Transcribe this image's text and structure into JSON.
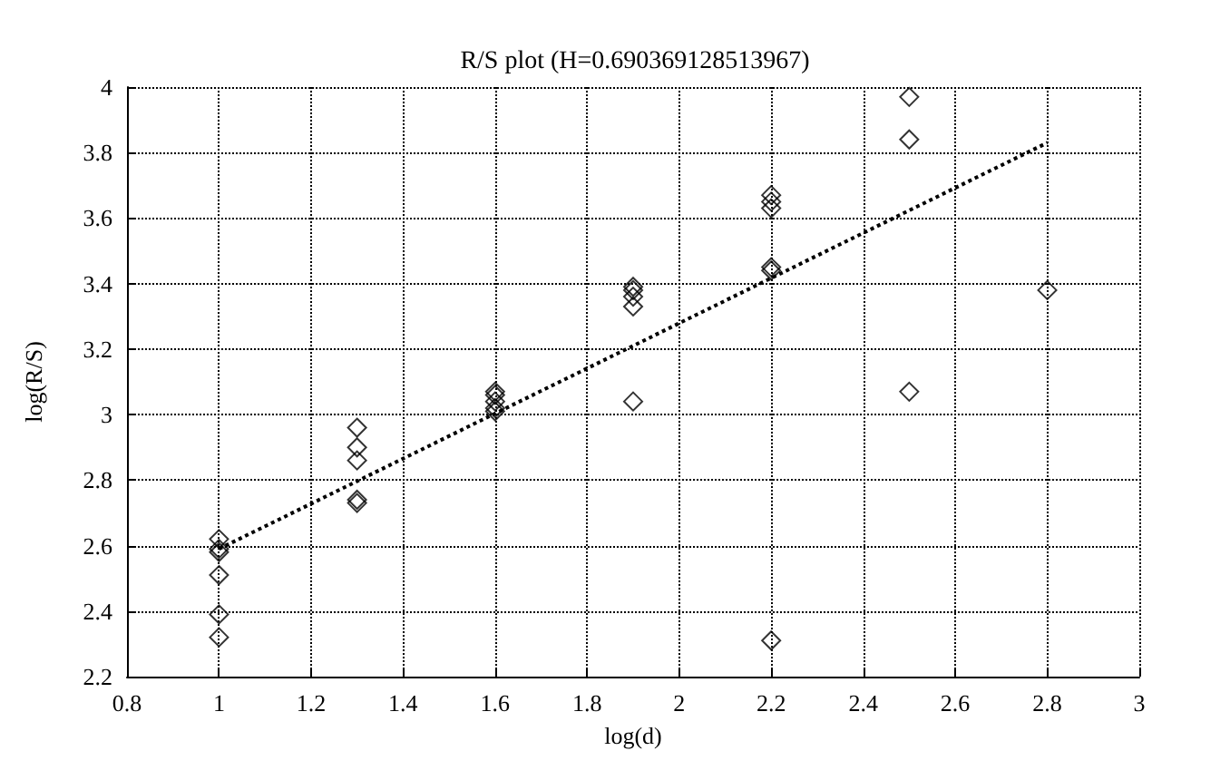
{
  "chart_data": {
    "type": "scatter",
    "title": "R/S plot (H=0.690369128513967)",
    "xlabel": "log(d)",
    "ylabel": "log(R/S)",
    "xlim": [
      0.8,
      3
    ],
    "xticks": [
      0.8,
      1,
      1.2,
      1.4,
      1.6,
      1.8,
      2,
      2.2,
      2.4,
      2.6,
      2.8,
      3
    ],
    "ylim": [
      2.2,
      4
    ],
    "yticks": [
      2.2,
      2.4,
      2.6,
      2.8,
      3,
      3.2,
      3.4,
      3.6,
      3.8,
      4
    ],
    "grid": true,
    "series": [
      {
        "color": "#000000",
        "marker": "diamond",
        "x": [
          1,
          1,
          1,
          1,
          1,
          1,
          1.3,
          1.3,
          1.3,
          1.3,
          1.3,
          1.6,
          1.6,
          1.6,
          1.6,
          1.6,
          1.9,
          1.9,
          1.9,
          1.9,
          1.9,
          2.2,
          2.2,
          2.2,
          2.2,
          2.2,
          2.2,
          2.5,
          2.5,
          2.5,
          2.8
        ],
        "values": [
          2.62,
          2.59,
          2.58,
          2.51,
          2.39,
          2.32,
          2.96,
          2.9,
          2.86,
          2.74,
          2.73,
          3.07,
          3.06,
          3.04,
          3.02,
          3.01,
          3.39,
          3.38,
          3.36,
          3.33,
          3.04,
          3.67,
          3.65,
          3.63,
          3.45,
          3.44,
          2.31,
          3.97,
          3.84,
          3.07,
          3.38
        ]
      },
      {
        "type": "line",
        "color": "#000000",
        "line_style": "dotted",
        "marker": "none",
        "x": [
          1,
          2.8
        ],
        "values": [
          2.59,
          3.83
        ]
      }
    ]
  }
}
